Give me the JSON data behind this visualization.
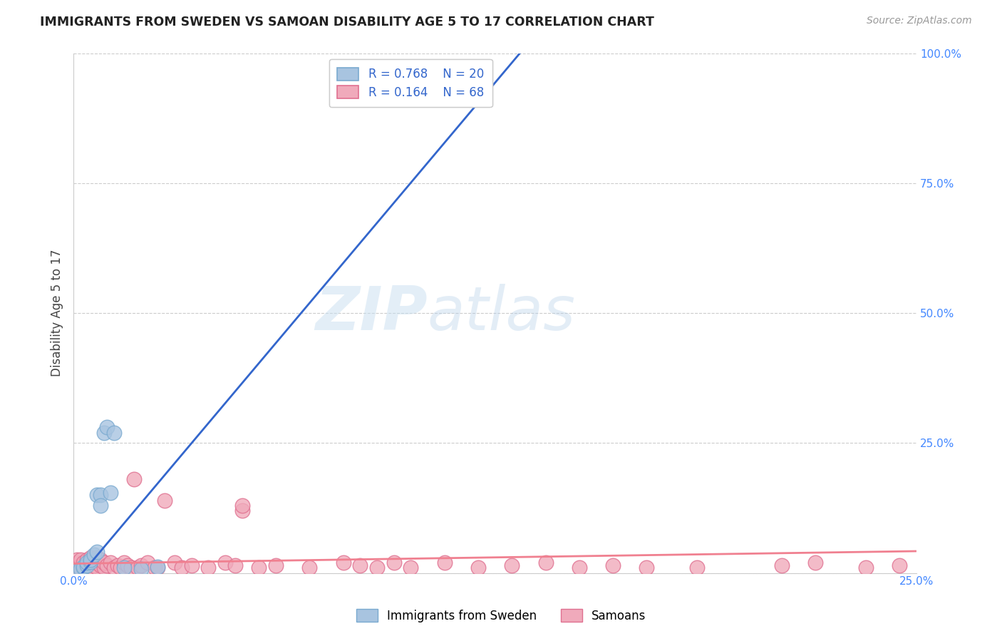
{
  "title": "IMMIGRANTS FROM SWEDEN VS SAMOAN DISABILITY AGE 5 TO 17 CORRELATION CHART",
  "source": "Source: ZipAtlas.com",
  "ylabel": "Disability Age 5 to 17",
  "xlim": [
    0.0,
    0.25
  ],
  "ylim": [
    0.0,
    1.0
  ],
  "watermark_zip": "ZIP",
  "watermark_atlas": "atlas",
  "legend_sweden_label": "Immigrants from Sweden",
  "legend_samoan_label": "Samoans",
  "sweden_R": "0.768",
  "sweden_N": "20",
  "samoan_R": "0.164",
  "samoan_N": "68",
  "sweden_color": "#a8c4e0",
  "samoan_color": "#f0aabb",
  "sweden_edge_color": "#7aaad0",
  "samoan_edge_color": "#e07090",
  "sweden_line_color": "#3366cc",
  "samoan_line_color": "#f08090",
  "sweden_line_x0": 0.0,
  "sweden_line_y0": -0.02,
  "sweden_line_x1": 0.135,
  "sweden_line_y1": 1.02,
  "samoan_line_x0": 0.0,
  "samoan_line_y0": 0.018,
  "samoan_line_x1": 0.25,
  "samoan_line_y1": 0.042,
  "sweden_scatter_x": [
    0.001,
    0.002,
    0.003,
    0.003,
    0.004,
    0.004,
    0.005,
    0.005,
    0.006,
    0.007,
    0.007,
    0.008,
    0.008,
    0.009,
    0.01,
    0.011,
    0.012,
    0.015,
    0.02,
    0.025
  ],
  "sweden_scatter_y": [
    0.005,
    0.008,
    0.01,
    0.012,
    0.015,
    0.02,
    0.022,
    0.025,
    0.035,
    0.04,
    0.15,
    0.15,
    0.13,
    0.27,
    0.28,
    0.155,
    0.27,
    0.01,
    0.008,
    0.012
  ],
  "samoan_scatter_x": [
    0.001,
    0.001,
    0.001,
    0.001,
    0.002,
    0.002,
    0.002,
    0.003,
    0.003,
    0.003,
    0.004,
    0.004,
    0.004,
    0.005,
    0.005,
    0.005,
    0.006,
    0.006,
    0.007,
    0.007,
    0.007,
    0.008,
    0.008,
    0.009,
    0.009,
    0.01,
    0.011,
    0.012,
    0.013,
    0.014,
    0.015,
    0.016,
    0.017,
    0.018,
    0.019,
    0.02,
    0.022,
    0.024,
    0.025,
    0.027,
    0.03,
    0.032,
    0.035,
    0.04,
    0.045,
    0.048,
    0.05,
    0.05,
    0.055,
    0.06,
    0.07,
    0.08,
    0.085,
    0.09,
    0.095,
    0.1,
    0.11,
    0.12,
    0.13,
    0.14,
    0.15,
    0.16,
    0.17,
    0.185,
    0.21,
    0.22,
    0.235,
    0.245
  ],
  "samoan_scatter_y": [
    0.01,
    0.015,
    0.02,
    0.025,
    0.01,
    0.015,
    0.025,
    0.008,
    0.015,
    0.02,
    0.01,
    0.015,
    0.025,
    0.01,
    0.02,
    0.03,
    0.015,
    0.025,
    0.01,
    0.02,
    0.03,
    0.015,
    0.025,
    0.01,
    0.02,
    0.015,
    0.02,
    0.01,
    0.015,
    0.01,
    0.02,
    0.015,
    0.01,
    0.18,
    0.01,
    0.015,
    0.02,
    0.01,
    0.01,
    0.14,
    0.02,
    0.01,
    0.015,
    0.01,
    0.02,
    0.015,
    0.12,
    0.13,
    0.01,
    0.015,
    0.01,
    0.02,
    0.015,
    0.01,
    0.02,
    0.01,
    0.02,
    0.01,
    0.015,
    0.02,
    0.01,
    0.015,
    0.01,
    0.01,
    0.015,
    0.02,
    0.01,
    0.015
  ],
  "background_color": "#ffffff",
  "grid_color": "#cccccc"
}
